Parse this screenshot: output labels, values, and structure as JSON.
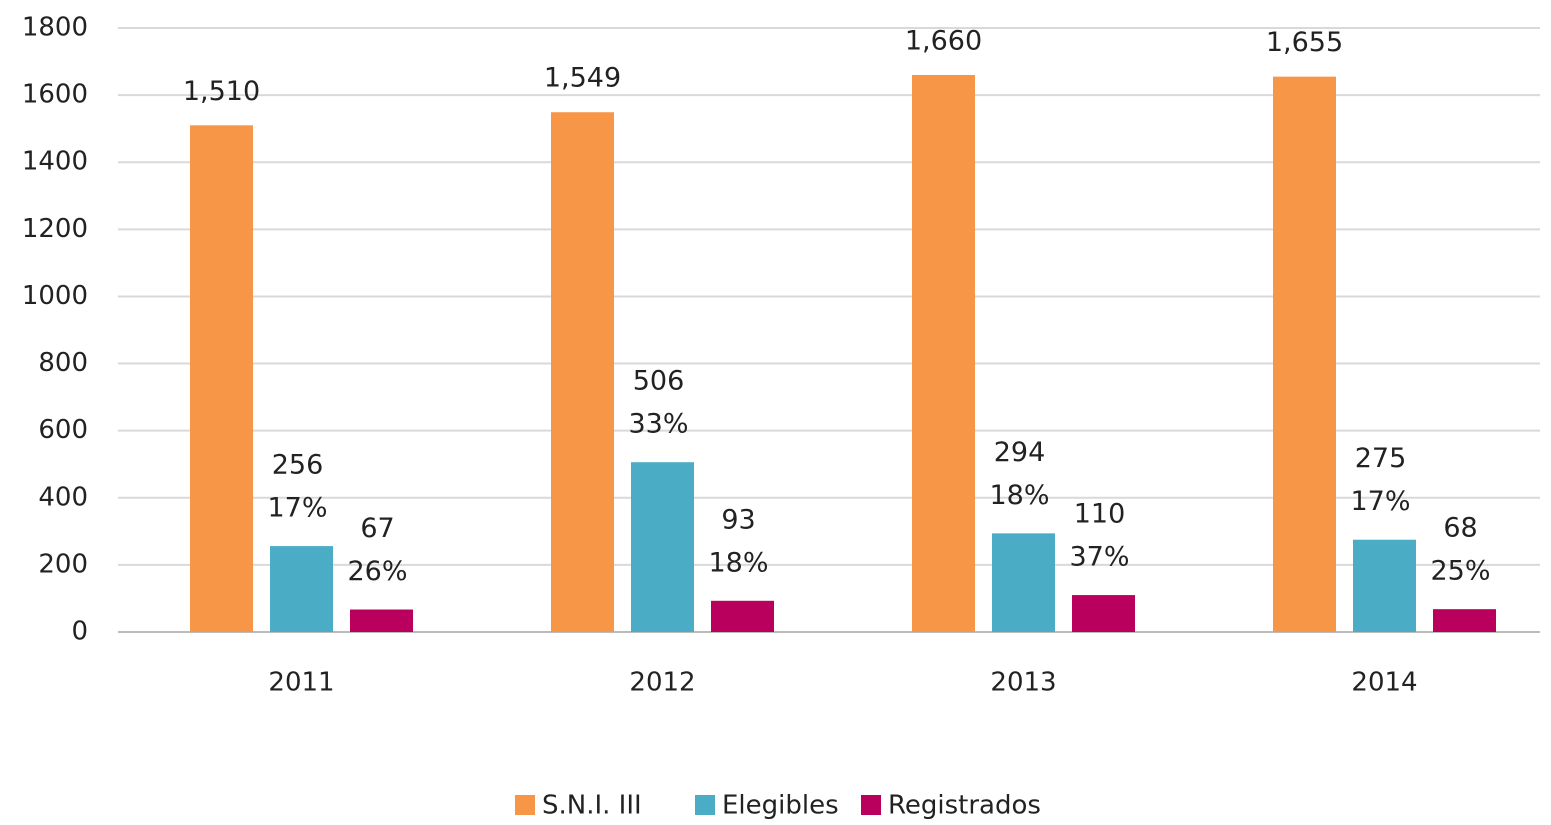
{
  "chart_data": {
    "type": "bar",
    "categories": [
      "2011",
      "2012",
      "2013",
      "2014"
    ],
    "series": [
      {
        "name": "S.N.I. III",
        "color": "#f79646",
        "values": [
          1510,
          1549,
          1660,
          1655
        ],
        "value_labels": [
          "1,510",
          "1,549",
          "1,660",
          "1,655"
        ]
      },
      {
        "name": "Elegibles",
        "color": "#4bacc6",
        "values": [
          256,
          506,
          294,
          275
        ],
        "percent_labels": [
          "17%",
          "33%",
          "18%",
          "17%"
        ]
      },
      {
        "name": "Registrados",
        "color": "#b8005c",
        "values": [
          67,
          93,
          110,
          68
        ],
        "percent_labels": [
          "26%",
          "18%",
          "37%",
          "25%"
        ]
      }
    ],
    "ylim": [
      0,
      1800
    ],
    "yticks": [
      0,
      200,
      400,
      600,
      800,
      1000,
      1200,
      1400,
      1600,
      1800
    ],
    "grid": true,
    "legend": "bottom"
  }
}
